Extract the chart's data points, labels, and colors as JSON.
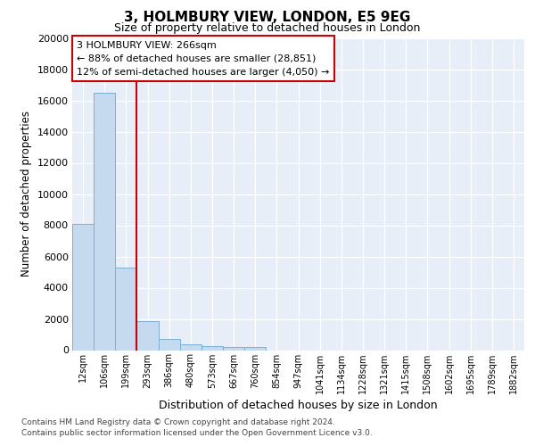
{
  "title": "3, HOLMBURY VIEW, LONDON, E5 9EG",
  "subtitle": "Size of property relative to detached houses in London",
  "xlabel": "Distribution of detached houses by size in London",
  "ylabel": "Number of detached properties",
  "categories": [
    "12sqm",
    "106sqm",
    "199sqm",
    "293sqm",
    "386sqm",
    "480sqm",
    "573sqm",
    "667sqm",
    "760sqm",
    "854sqm",
    "947sqm",
    "1041sqm",
    "1134sqm",
    "1228sqm",
    "1321sqm",
    "1415sqm",
    "1508sqm",
    "1602sqm",
    "1695sqm",
    "1789sqm",
    "1882sqm"
  ],
  "values": [
    8100,
    16500,
    5300,
    1850,
    700,
    350,
    280,
    210,
    190,
    0,
    0,
    0,
    0,
    0,
    0,
    0,
    0,
    0,
    0,
    0,
    0
  ],
  "bar_color": "#c5d9ef",
  "bar_edge_color": "#7aafd4",
  "vline_x": 2.5,
  "vline_color": "#cc0000",
  "annotation_text": "3 HOLMBURY VIEW: 266sqm\n← 88% of detached houses are smaller (28,851)\n12% of semi-detached houses are larger (4,050) →",
  "annotation_box_edgecolor": "#cc0000",
  "ylim": [
    0,
    20000
  ],
  "yticks": [
    0,
    2000,
    4000,
    6000,
    8000,
    10000,
    12000,
    14000,
    16000,
    18000,
    20000
  ],
  "footer_line1": "Contains HM Land Registry data © Crown copyright and database right 2024.",
  "footer_line2": "Contains public sector information licensed under the Open Government Licence v3.0.",
  "plot_bg_color": "#e8eef8",
  "fig_bg_color": "#ffffff",
  "grid_color": "#ffffff"
}
